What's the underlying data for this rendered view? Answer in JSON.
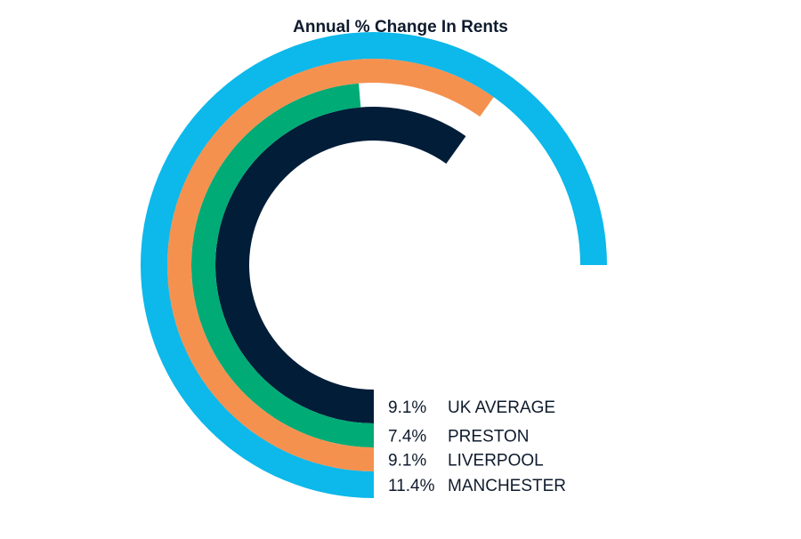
{
  "chart_data": {
    "type": "radial-bar",
    "title": "Annual % Change In Rents",
    "series": [
      {
        "name": "UK AVERAGE",
        "value": 9.1,
        "label": "9.1%",
        "color": "#021d38"
      },
      {
        "name": "PRESTON",
        "value": 7.4,
        "label": "7.4%",
        "color": "#00ab76"
      },
      {
        "name": "LIVERPOOL",
        "value": 9.1,
        "label": "9.1%",
        "color": "#f5914f"
      },
      {
        "name": "MANCHESTER",
        "value": 11.4,
        "label": "11.4%",
        "color": "#0db8ea"
      }
    ]
  }
}
